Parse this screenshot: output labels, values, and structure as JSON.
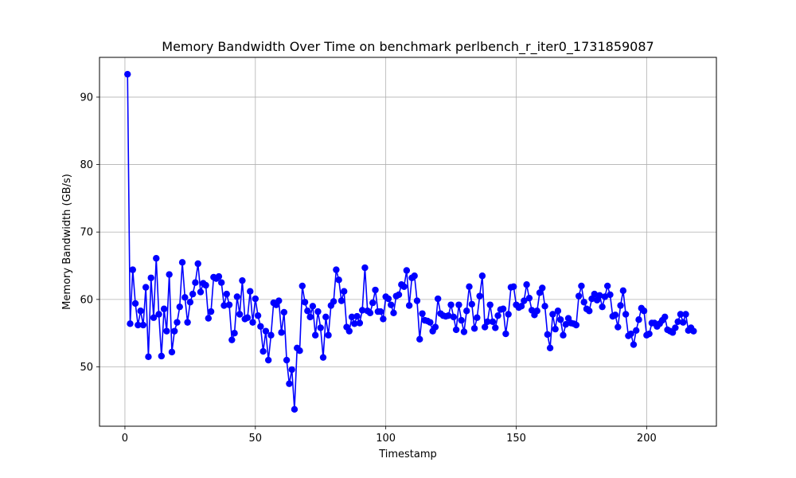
{
  "chart_data": {
    "type": "line",
    "title": "Memory Bandwidth Over Time on benchmark perlbench_r_iter0_1731859087",
    "xlabel": "Timestamp",
    "ylabel": "Memory Bandwidth (GB/s)",
    "xlim": [
      -9.75,
      226.75
    ],
    "ylim": [
      41.2,
      95.9
    ],
    "x_ticks": [
      0,
      50,
      100,
      150,
      200
    ],
    "y_ticks": [
      50,
      60,
      70,
      80,
      90
    ],
    "grid": true,
    "color": "#0000ff",
    "marker": "circle",
    "x_start": 1,
    "values": [
      93.4,
      56.4,
      64.4,
      59.4,
      56.2,
      58.3,
      56.2,
      61.8,
      51.5,
      63.2,
      57.3,
      66.1,
      57.8,
      51.6,
      58.6,
      55.3,
      63.7,
      52.2,
      55.3,
      56.6,
      58.9,
      65.5,
      60.3,
      56.6,
      59.6,
      60.8,
      62.5,
      65.3,
      61.1,
      62.4,
      62.1,
      57.2,
      58.2,
      63.3,
      63.1,
      63.4,
      62.5,
      59.1,
      60.8,
      59.2,
      54.0,
      55.0,
      60.4,
      57.8,
      62.8,
      57.1,
      57.3,
      61.2,
      56.6,
      60.1,
      57.6,
      56.0,
      52.3,
      55.3,
      51.0,
      54.7,
      59.5,
      59.2,
      59.8,
      55.1,
      58.1,
      51.0,
      47.5,
      49.6,
      43.7,
      52.8,
      52.4,
      62.0,
      59.6,
      58.3,
      57.4,
      59.0,
      54.7,
      58.2,
      55.8,
      51.4,
      57.4,
      54.7,
      59.1,
      59.7,
      64.4,
      62.9,
      59.8,
      61.2,
      55.9,
      55.3,
      57.4,
      56.4,
      57.5,
      56.5,
      58.4,
      64.7,
      58.3,
      58.0,
      59.5,
      61.4,
      58.2,
      58.2,
      57.1,
      60.4,
      60.1,
      59.2,
      58.0,
      60.5,
      60.7,
      62.2,
      61.9,
      64.3,
      59.1,
      63.2,
      63.5,
      59.8,
      54.1,
      57.9,
      56.9,
      56.8,
      56.6,
      55.3,
      55.9,
      60.1,
      57.9,
      57.6,
      57.5,
      57.6,
      59.2,
      57.4,
      55.5,
      59.2,
      56.9,
      55.2,
      58.3,
      61.9,
      59.3,
      55.7,
      57.3,
      60.5,
      63.5,
      55.9,
      56.7,
      59.2,
      56.7,
      55.8,
      57.6,
      58.5,
      58.6,
      54.9,
      57.8,
      61.8,
      61.9,
      59.2,
      58.8,
      59.0,
      59.8,
      62.2,
      60.2,
      58.4,
      57.7,
      58.3,
      61.0,
      61.7,
      59.0,
      54.8,
      52.8,
      57.8,
      55.6,
      58.3,
      57.0,
      54.7,
      56.3,
      57.2,
      56.5,
      56.4,
      56.2,
      60.5,
      62.0,
      59.6,
      58.6,
      58.3,
      60.1,
      60.8,
      59.9,
      60.6,
      58.9,
      60.4,
      62.0,
      60.7,
      57.5,
      57.7,
      55.9,
      59.1,
      61.3,
      57.8,
      54.6,
      54.9,
      53.3,
      55.4,
      57.0,
      58.7,
      58.3,
      54.7,
      54.9,
      56.5,
      56.5,
      56.0,
      56.4,
      56.9,
      57.4,
      55.5,
      55.3,
      55.1,
      55.8,
      56.7,
      57.8,
      56.6,
      57.8,
      55.4,
      55.8,
      55.3
    ]
  }
}
